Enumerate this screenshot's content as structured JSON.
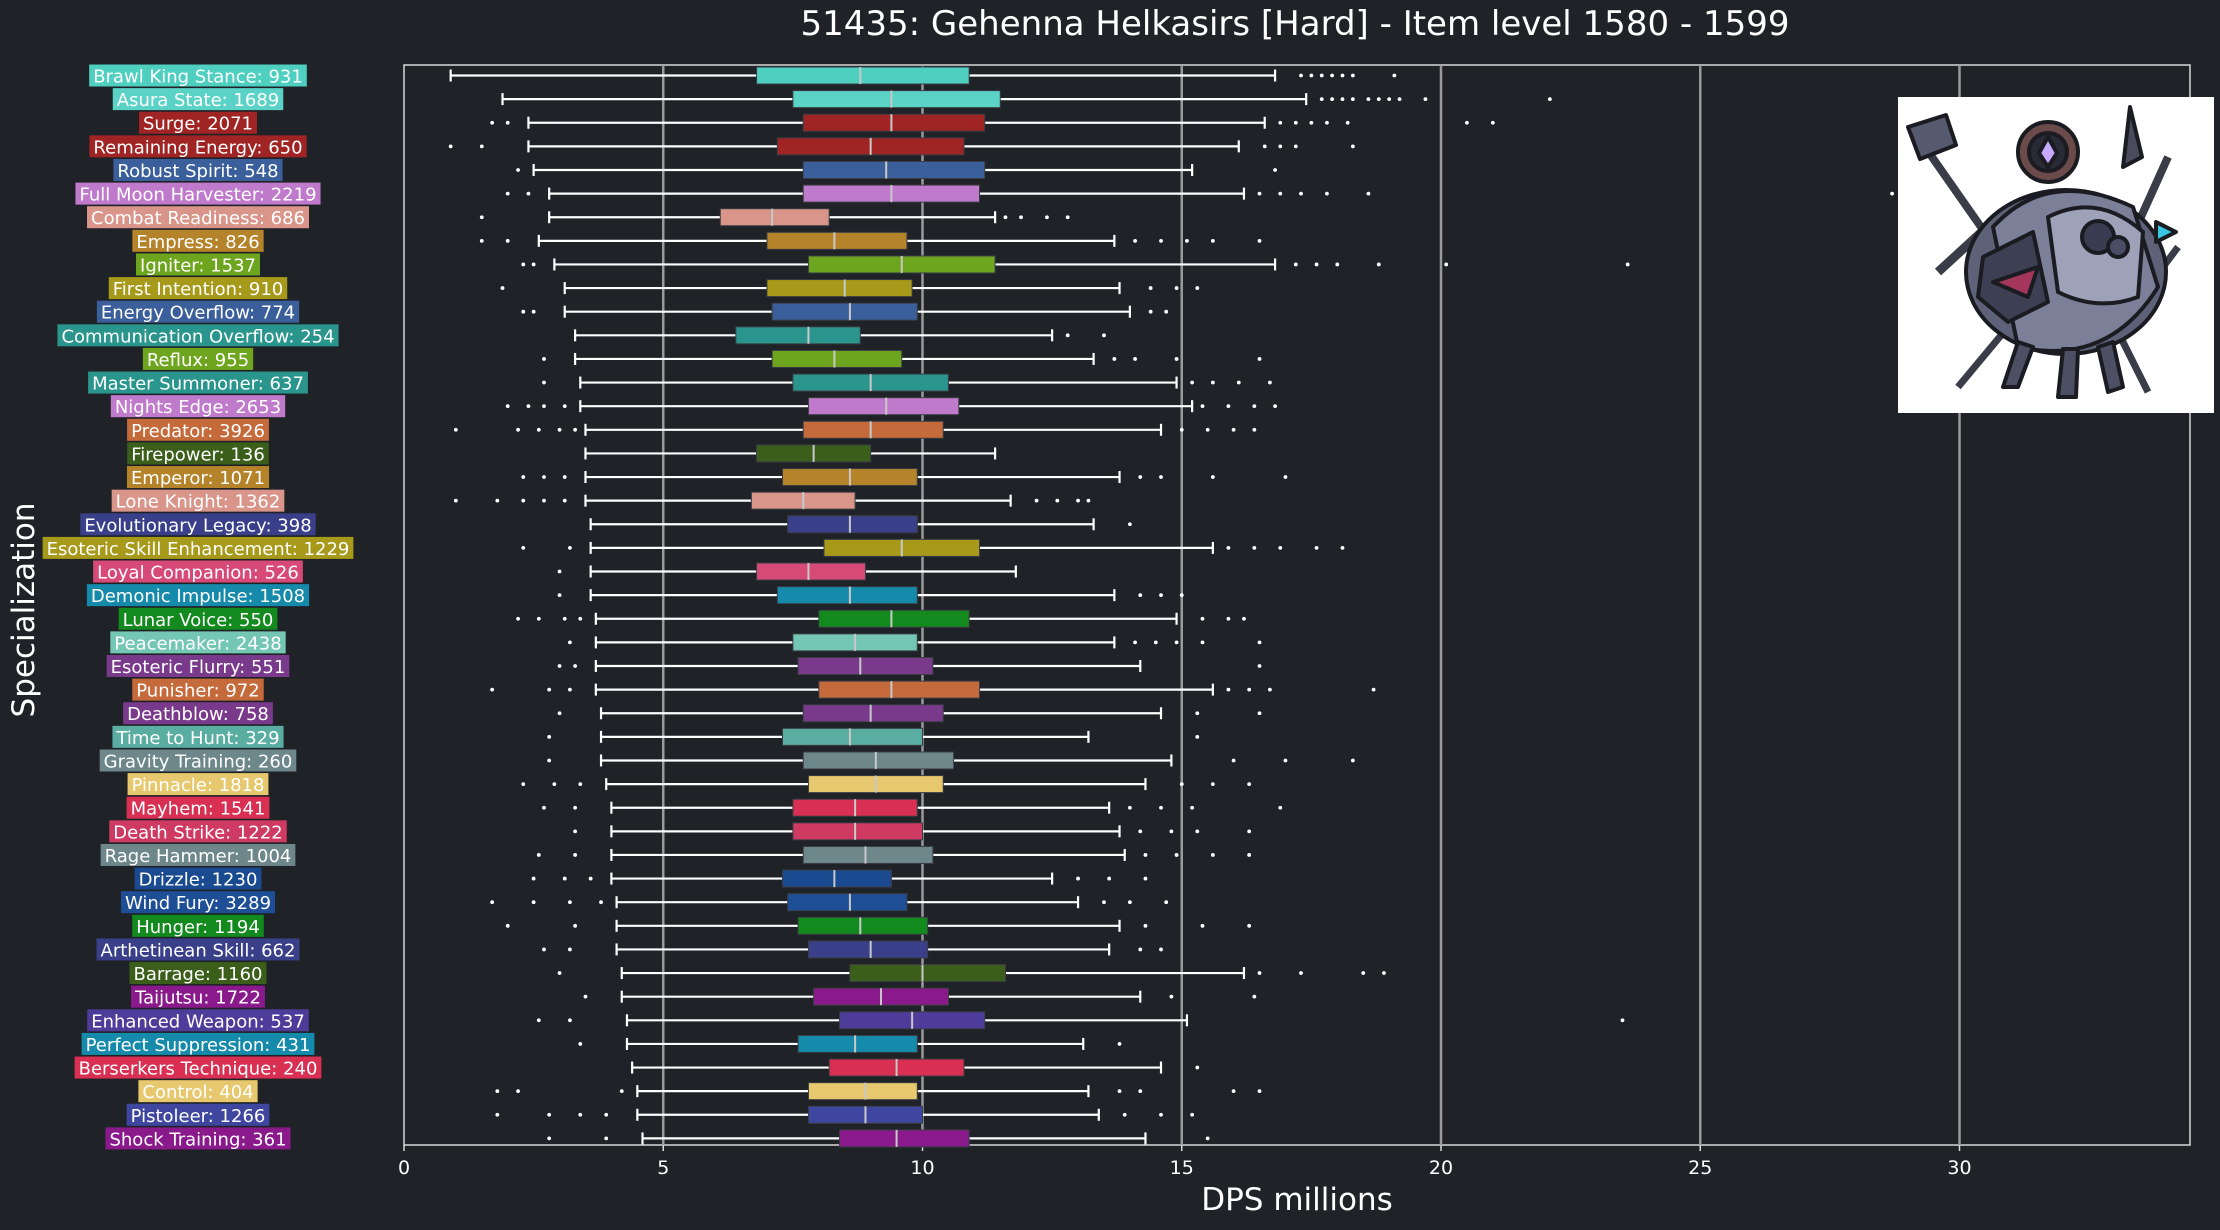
{
  "chart_data": {
    "type": "box",
    "orientation": "horizontal",
    "title": "51435: Gehenna Helkasirs [Hard] - Item level 1580 - 1599",
    "xlabel": "DPS millions",
    "ylabel": "Specialization",
    "xlim": [
      0,
      34.5
    ],
    "xticks": [
      0,
      5,
      10,
      15,
      20,
      25,
      30
    ],
    "grid": "vertical lines at 5, 10, 15, 20, 25, 30",
    "legend": "none",
    "categories": [
      {
        "label": "Brawl King Stance: 931",
        "color": "#4ecfbf",
        "whislo": 0.9,
        "q1": 6.8,
        "med": 8.8,
        "q3": 10.9,
        "whishi": 16.8,
        "fliers": [
          17.3,
          17.5,
          17.7,
          17.9,
          18.1,
          18.3,
          19.1
        ]
      },
      {
        "label": "Asura State: 1689",
        "color": "#5ad3c6",
        "whislo": 1.9,
        "q1": 7.5,
        "med": 9.4,
        "q3": 11.5,
        "whishi": 17.4,
        "fliers": [
          17.7,
          17.9,
          18.1,
          18.3,
          18.6,
          18.8,
          19.0,
          19.2,
          19.7,
          22.1
        ]
      },
      {
        "label": "Surge: 2071",
        "color": "#a02424",
        "whislo": 2.4,
        "q1": 7.7,
        "med": 9.4,
        "q3": 11.2,
        "whishi": 16.6,
        "fliers": [
          1.7,
          2.0,
          16.9,
          17.2,
          17.5,
          17.8,
          18.2,
          20.5,
          21.0
        ]
      },
      {
        "label": "Remaining Energy: 650",
        "color": "#a02424",
        "whislo": 2.4,
        "q1": 7.2,
        "med": 9.0,
        "q3": 10.8,
        "whishi": 16.1,
        "fliers": [
          0.9,
          1.5,
          16.6,
          16.9,
          17.2,
          18.3
        ]
      },
      {
        "label": "Robust Spirit: 548",
        "color": "#3a5f9a",
        "whislo": 2.5,
        "q1": 7.7,
        "med": 9.3,
        "q3": 11.2,
        "whishi": 15.2,
        "fliers": [
          2.2,
          16.8
        ]
      },
      {
        "label": "Full Moon Harvester: 2219",
        "color": "#c07acc",
        "whislo": 2.8,
        "q1": 7.7,
        "med": 9.4,
        "q3": 11.1,
        "whishi": 16.2,
        "fliers": [
          2.0,
          2.4,
          16.5,
          16.9,
          17.3,
          17.8,
          18.6,
          28.7
        ]
      },
      {
        "label": "Combat Readiness: 686",
        "color": "#d9958a",
        "whislo": 2.8,
        "q1": 6.1,
        "med": 7.1,
        "q3": 8.2,
        "whishi": 11.4,
        "fliers": [
          1.5,
          11.6,
          11.9,
          12.4,
          12.8
        ]
      },
      {
        "label": "Empress: 826",
        "color": "#b4832a",
        "whislo": 2.6,
        "q1": 7.0,
        "med": 8.3,
        "q3": 9.7,
        "whishi": 13.7,
        "fliers": [
          1.5,
          2.0,
          14.1,
          14.6,
          15.1,
          15.6,
          16.5
        ]
      },
      {
        "label": "Igniter: 1537",
        "color": "#6ea51e",
        "whislo": 2.9,
        "q1": 7.8,
        "med": 9.6,
        "q3": 11.4,
        "whishi": 16.8,
        "fliers": [
          2.3,
          2.5,
          17.2,
          17.6,
          18.0,
          18.8,
          20.1,
          23.6
        ]
      },
      {
        "label": "First Intention: 910",
        "color": "#a79a1a",
        "whislo": 3.1,
        "q1": 7.0,
        "med": 8.5,
        "q3": 9.8,
        "whishi": 13.8,
        "fliers": [
          1.9,
          14.4,
          14.9,
          15.3
        ]
      },
      {
        "label": "Energy Overflow: 774",
        "color": "#3a5f9a",
        "whislo": 3.1,
        "q1": 7.1,
        "med": 8.6,
        "q3": 9.9,
        "whishi": 14.0,
        "fliers": [
          2.3,
          2.5,
          14.4,
          14.7
        ]
      },
      {
        "label": "Communication Overflow: 254",
        "color": "#2a958c",
        "whislo": 3.3,
        "q1": 6.4,
        "med": 7.8,
        "q3": 8.8,
        "whishi": 12.5,
        "fliers": [
          12.8,
          13.5
        ]
      },
      {
        "label": "Reflux: 955",
        "color": "#6ea51e",
        "whislo": 3.3,
        "q1": 7.1,
        "med": 8.3,
        "q3": 9.6,
        "whishi": 13.3,
        "fliers": [
          2.7,
          13.7,
          14.1,
          14.9,
          16.5
        ]
      },
      {
        "label": "Master Summoner: 637",
        "color": "#2a958c",
        "whislo": 3.4,
        "q1": 7.5,
        "med": 9.0,
        "q3": 10.5,
        "whishi": 14.9,
        "fliers": [
          2.7,
          15.2,
          15.6,
          16.1,
          16.7
        ]
      },
      {
        "label": "Nights Edge: 2653",
        "color": "#c07acc",
        "whislo": 3.4,
        "q1": 7.8,
        "med": 9.3,
        "q3": 10.7,
        "whishi": 15.2,
        "fliers": [
          2.0,
          2.4,
          2.7,
          3.1,
          15.4,
          15.9,
          16.4,
          16.8
        ]
      },
      {
        "label": "Predator: 3926",
        "color": "#c56a3b",
        "whislo": 3.5,
        "q1": 7.7,
        "med": 9.0,
        "q3": 10.4,
        "whishi": 14.6,
        "fliers": [
          1.0,
          2.2,
          2.6,
          3.0,
          3.3,
          15.0,
          15.5,
          16.0,
          16.4
        ]
      },
      {
        "label": "Firepower: 136",
        "color": "#3b5f1a",
        "whislo": 3.5,
        "q1": 6.8,
        "med": 7.9,
        "q3": 9.0,
        "whishi": 11.4,
        "fliers": []
      },
      {
        "label": "Emperor: 1071",
        "color": "#b4832a",
        "whislo": 3.5,
        "q1": 7.3,
        "med": 8.6,
        "q3": 9.9,
        "whishi": 13.8,
        "fliers": [
          2.3,
          2.7,
          3.1,
          14.2,
          14.6,
          15.6,
          17.0
        ]
      },
      {
        "label": "Lone Knight: 1362",
        "color": "#d9958a",
        "whislo": 3.5,
        "q1": 6.7,
        "med": 7.7,
        "q3": 8.7,
        "whishi": 11.7,
        "fliers": [
          1.0,
          1.8,
          2.3,
          2.7,
          3.1,
          12.2,
          12.6,
          13.0,
          13.2
        ]
      },
      {
        "label": "Evolutionary Legacy: 398",
        "color": "#3a3f8a",
        "whislo": 3.6,
        "q1": 7.4,
        "med": 8.6,
        "q3": 9.9,
        "whishi": 13.3,
        "fliers": [
          14.0
        ]
      },
      {
        "label": "Esoteric Skill Enhancement: 1229",
        "color": "#a79a1a",
        "whislo": 3.6,
        "q1": 8.1,
        "med": 9.6,
        "q3": 11.1,
        "whishi": 15.6,
        "fliers": [
          2.3,
          3.2,
          15.9,
          16.4,
          16.9,
          17.6,
          18.1
        ]
      },
      {
        "label": "Loyal Companion: 526",
        "color": "#d74a78",
        "whislo": 3.6,
        "q1": 6.8,
        "med": 7.8,
        "q3": 8.9,
        "whishi": 11.8,
        "fliers": [
          3.0
        ]
      },
      {
        "label": "Demonic Impulse: 1508",
        "color": "#168aaa",
        "whislo": 3.6,
        "q1": 7.2,
        "med": 8.6,
        "q3": 9.9,
        "whishi": 13.7,
        "fliers": [
          3.0,
          14.2,
          14.6,
          15.0
        ]
      },
      {
        "label": "Lunar Voice: 550",
        "color": "#138a1e",
        "whislo": 3.7,
        "q1": 8.0,
        "med": 9.4,
        "q3": 10.9,
        "whishi": 14.9,
        "fliers": [
          2.2,
          2.6,
          3.1,
          3.4,
          15.4,
          15.9,
          16.2
        ]
      },
      {
        "label": "Peacemaker: 2438",
        "color": "#74c7b4",
        "whislo": 3.7,
        "q1": 7.5,
        "med": 8.7,
        "q3": 9.9,
        "whishi": 13.7,
        "fliers": [
          3.2,
          14.1,
          14.5,
          14.9,
          15.4,
          16.5
        ]
      },
      {
        "label": "Esoteric Flurry: 551",
        "color": "#7a3a8c",
        "whislo": 3.7,
        "q1": 7.6,
        "med": 8.8,
        "q3": 10.2,
        "whishi": 14.2,
        "fliers": [
          3.0,
          3.3,
          16.5
        ]
      },
      {
        "label": "Punisher: 972",
        "color": "#c56a3b",
        "whislo": 3.7,
        "q1": 8.0,
        "med": 9.4,
        "q3": 11.1,
        "whishi": 15.6,
        "fliers": [
          1.7,
          2.8,
          3.2,
          15.9,
          16.3,
          16.7,
          18.7
        ]
      },
      {
        "label": "Deathblow: 758",
        "color": "#7a3a8c",
        "whislo": 3.8,
        "q1": 7.7,
        "med": 9.0,
        "q3": 10.4,
        "whishi": 14.6,
        "fliers": [
          3.0,
          15.3,
          16.5
        ]
      },
      {
        "label": "Time to Hunt: 329",
        "color": "#5aaea1",
        "whislo": 3.8,
        "q1": 7.3,
        "med": 8.6,
        "q3": 10.0,
        "whishi": 13.2,
        "fliers": [
          2.8,
          15.3
        ]
      },
      {
        "label": "Gravity Training: 260",
        "color": "#6d878a",
        "whislo": 3.8,
        "q1": 7.7,
        "med": 9.1,
        "q3": 10.6,
        "whishi": 14.8,
        "fliers": [
          2.8,
          16.0,
          17.0,
          18.3
        ]
      },
      {
        "label": "Pinnacle: 1818",
        "color": "#e7c86e",
        "whislo": 3.9,
        "q1": 7.8,
        "med": 9.1,
        "q3": 10.4,
        "whishi": 14.3,
        "fliers": [
          2.3,
          2.9,
          3.4,
          15.0,
          15.6,
          16.3
        ]
      },
      {
        "label": "Mayhem: 1541",
        "color": "#d92f52",
        "whislo": 4.0,
        "q1": 7.5,
        "med": 8.7,
        "q3": 9.9,
        "whishi": 13.6,
        "fliers": [
          2.7,
          3.3,
          14.0,
          14.6,
          15.2,
          16.9
        ]
      },
      {
        "label": "Death Strike: 1222",
        "color": "#cf3a63",
        "whislo": 4.0,
        "q1": 7.5,
        "med": 8.7,
        "q3": 10.0,
        "whishi": 13.8,
        "fliers": [
          3.3,
          14.2,
          14.8,
          15.3,
          16.3
        ]
      },
      {
        "label": "Rage Hammer: 1004",
        "color": "#6d878a",
        "whislo": 4.0,
        "q1": 7.7,
        "med": 8.9,
        "q3": 10.2,
        "whishi": 13.9,
        "fliers": [
          2.6,
          3.3,
          14.3,
          14.9,
          15.6,
          16.3
        ]
      },
      {
        "label": "Drizzle: 1230",
        "color": "#1a4a90",
        "whislo": 4.0,
        "q1": 7.3,
        "med": 8.3,
        "q3": 9.4,
        "whishi": 12.5,
        "fliers": [
          2.5,
          3.1,
          3.6,
          13.0,
          13.6,
          14.3
        ]
      },
      {
        "label": "Wind Fury: 3289",
        "color": "#1e4f96",
        "whislo": 4.1,
        "q1": 7.4,
        "med": 8.6,
        "q3": 9.7,
        "whishi": 13.0,
        "fliers": [
          1.7,
          2.5,
          3.2,
          3.8,
          13.5,
          14.0,
          14.7
        ]
      },
      {
        "label": "Hunger: 1194",
        "color": "#138a1e",
        "whislo": 4.1,
        "q1": 7.6,
        "med": 8.8,
        "q3": 10.1,
        "whishi": 13.8,
        "fliers": [
          2.0,
          3.3,
          14.3,
          15.4,
          16.3
        ]
      },
      {
        "label": "Arthetinean Skill: 662",
        "color": "#3a3f8a",
        "whislo": 4.1,
        "q1": 7.8,
        "med": 9.0,
        "q3": 10.1,
        "whishi": 13.6,
        "fliers": [
          2.7,
          3.2,
          14.2,
          14.6
        ]
      },
      {
        "label": "Barrage: 1160",
        "color": "#3b5f1a",
        "whislo": 4.2,
        "q1": 8.6,
        "med": 10.0,
        "q3": 11.6,
        "whishi": 16.2,
        "fliers": [
          3.0,
          16.5,
          17.3,
          18.5,
          18.9
        ]
      },
      {
        "label": "Taijutsu: 1722",
        "color": "#8a1a8c",
        "whislo": 4.2,
        "q1": 7.9,
        "med": 9.2,
        "q3": 10.5,
        "whishi": 14.2,
        "fliers": [
          3.5,
          14.8,
          16.4
        ]
      },
      {
        "label": "Enhanced Weapon: 537",
        "color": "#4e3c9a",
        "whislo": 4.3,
        "q1": 8.4,
        "med": 9.8,
        "q3": 11.2,
        "whishi": 15.1,
        "fliers": [
          2.6,
          3.2,
          23.5
        ]
      },
      {
        "label": "Perfect Suppression: 431",
        "color": "#168aaa",
        "whislo": 4.3,
        "q1": 7.6,
        "med": 8.7,
        "q3": 9.9,
        "whishi": 13.1,
        "fliers": [
          3.4,
          13.8
        ]
      },
      {
        "label": "Berserkers Technique: 240",
        "color": "#d92f52",
        "whislo": 4.4,
        "q1": 8.2,
        "med": 9.5,
        "q3": 10.8,
        "whishi": 14.6,
        "fliers": [
          15.3
        ]
      },
      {
        "label": "Control: 404",
        "color": "#e7c86e",
        "whislo": 4.5,
        "q1": 7.8,
        "med": 8.9,
        "q3": 9.9,
        "whishi": 13.2,
        "fliers": [
          1.8,
          2.2,
          4.2,
          13.8,
          14.2,
          16.0,
          16.5
        ]
      },
      {
        "label": "Pistoleer: 1266",
        "color": "#3f46a0",
        "whislo": 4.5,
        "q1": 7.8,
        "med": 8.9,
        "q3": 10.0,
        "whishi": 13.4,
        "fliers": [
          1.8,
          2.8,
          3.4,
          3.9,
          13.9,
          14.6,
          15.2
        ]
      },
      {
        "label": "Shock Training: 361",
        "color": "#8a1a8c",
        "whislo": 4.6,
        "q1": 8.4,
        "med": 9.5,
        "q3": 10.9,
        "whishi": 14.3,
        "fliers": [
          2.8,
          3.9,
          15.5
        ]
      }
    ]
  }
}
